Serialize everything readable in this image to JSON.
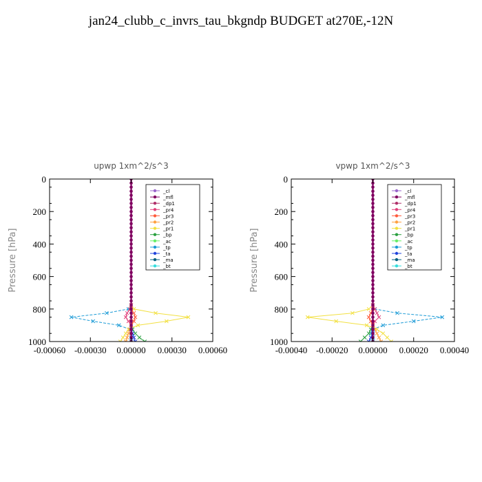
{
  "title": "jan24_clubb_c_invrs_tau_bkgndp  BUDGET at270E,-12N",
  "legend_entries": [
    {
      "name": "_cl",
      "color": "#9966cc"
    },
    {
      "name": "_mfl",
      "color": "#800060"
    },
    {
      "name": "_dp1",
      "color": "#b0306a"
    },
    {
      "name": "_pr4",
      "color": "#e0407a"
    },
    {
      "name": "_pr3",
      "color": "#ff5a3a"
    },
    {
      "name": "_pr2",
      "color": "#ffa040"
    },
    {
      "name": "_pr1",
      "color": "#f2e040"
    },
    {
      "name": "_bp",
      "color": "#2aa040"
    },
    {
      "name": "_ac",
      "color": "#66ee66"
    },
    {
      "name": "_tp",
      "color": "#1a9ad6"
    },
    {
      "name": "_ta",
      "color": "#2244dd"
    },
    {
      "name": "_ma",
      "color": "#006080"
    },
    {
      "name": "_bt",
      "color": "#33dddd"
    }
  ],
  "chart_data": [
    {
      "type": "line",
      "title": "upwp   1xm^2/s^3",
      "ylabel": "Pressure [hPa]",
      "xlim": [
        -0.0006,
        0.0006
      ],
      "ylim": [
        1000,
        0
      ],
      "xticks": [
        "-0.00060",
        "-0.00030",
        "0.00000",
        "0.00030",
        "0.00060"
      ],
      "yticks": [
        "0",
        "200",
        "400",
        "600",
        "800",
        "1000"
      ],
      "grid": false,
      "legend_position": "top-right",
      "series": [
        {
          "name": "_tp",
          "y": [
            775,
            800,
            825,
            850,
            875,
            900,
            925,
            950,
            975,
            1000
          ],
          "x": [
            0,
            -2e-05,
            -0.00018,
            -0.00044,
            -0.00028,
            -9e-05,
            -1e-05,
            1e-05,
            0,
            0
          ]
        },
        {
          "name": "_pr1",
          "y": [
            775,
            800,
            825,
            850,
            875,
            900,
            925,
            950,
            975,
            1000
          ],
          "x": [
            0,
            2e-05,
            0.00018,
            0.00042,
            0.00026,
            5e-05,
            -2e-05,
            -4e-05,
            -6e-05,
            -8e-05
          ]
        },
        {
          "name": "_pr2",
          "y": [
            875,
            900,
            925,
            950,
            975,
            1000
          ],
          "x": [
            0,
            0,
            -1e-05,
            -2e-05,
            -3e-05,
            -4e-05
          ]
        },
        {
          "name": "_bp",
          "y": [
            900,
            925,
            950,
            975,
            1000
          ],
          "x": [
            0,
            1e-05,
            3e-05,
            6e-05,
            0.0001
          ]
        },
        {
          "name": "_ta",
          "y": [
            925,
            950,
            975,
            1000
          ],
          "x": [
            0,
            1e-05,
            2e-05,
            3e-05
          ]
        },
        {
          "name": "_pr4",
          "y": [
            775,
            800,
            825,
            850,
            875,
            900
          ],
          "x": [
            0,
            -1e-05,
            -3e-05,
            -4e-05,
            -2e-05,
            0
          ]
        },
        {
          "name": "_pr3",
          "y": [
            800,
            825,
            850,
            875,
            900
          ],
          "x": [
            0,
            2e-05,
            3e-05,
            2e-05,
            0
          ]
        },
        {
          "name": "_mfl",
          "y": [
            0,
            25,
            50,
            75,
            100,
            125,
            150,
            175,
            200,
            225,
            250,
            275,
            300,
            325,
            350,
            375,
            400,
            425,
            450,
            475,
            500,
            525,
            550,
            575,
            600,
            625,
            650,
            675,
            700,
            725,
            750,
            775,
            800,
            825,
            850,
            875,
            900,
            925,
            950,
            975,
            1000
          ],
          "x": [
            0,
            0,
            0,
            0,
            0,
            0,
            0,
            0,
            0,
            0,
            0,
            0,
            0,
            0,
            0,
            0,
            0,
            0,
            0,
            0,
            0,
            0,
            0,
            0,
            0,
            0,
            0,
            0,
            0,
            0,
            0,
            0,
            0,
            0,
            0,
            0,
            0,
            0,
            0,
            0,
            0
          ]
        }
      ]
    },
    {
      "type": "line",
      "title": "vpwp   1xm^2/s^3",
      "ylabel": "Pressure [hPa]",
      "xlim": [
        -0.0004,
        0.0004
      ],
      "ylim": [
        1000,
        0
      ],
      "xticks": [
        "-0.00040",
        "-0.00020",
        "0.00000",
        "0.00020",
        "0.00040"
      ],
      "yticks": [
        "0",
        "200",
        "400",
        "600",
        "800",
        "1000"
      ],
      "grid": false,
      "legend_position": "top-right",
      "series": [
        {
          "name": "_tp",
          "y": [
            775,
            800,
            825,
            850,
            875,
            900,
            925,
            950,
            975,
            1000
          ],
          "x": [
            0,
            1e-05,
            0.00012,
            0.00034,
            0.0002,
            5e-05,
            0,
            -1e-05,
            0,
            0
          ]
        },
        {
          "name": "_pr1",
          "y": [
            775,
            800,
            825,
            850,
            875,
            900,
            925,
            950,
            975,
            1000
          ],
          "x": [
            0,
            -2e-05,
            -0.0001,
            -0.00032,
            -0.00018,
            -3e-05,
            2e-05,
            5e-05,
            7e-05,
            9e-05
          ]
        },
        {
          "name": "_pr2",
          "y": [
            900,
            925,
            950,
            975,
            1000
          ],
          "x": [
            0,
            1e-05,
            2e-05,
            3e-05,
            4e-05
          ]
        },
        {
          "name": "_bp",
          "y": [
            900,
            925,
            950,
            975,
            1000
          ],
          "x": [
            0,
            -1e-05,
            -2e-05,
            -4e-05,
            -6e-05
          ]
        },
        {
          "name": "_ta",
          "y": [
            925,
            950,
            975,
            1000
          ],
          "x": [
            0,
            0,
            -1e-05,
            -2e-05
          ]
        },
        {
          "name": "_pr4",
          "y": [
            775,
            800,
            825,
            850,
            875,
            900
          ],
          "x": [
            0,
            1e-05,
            2e-05,
            3e-05,
            1e-05,
            0
          ]
        },
        {
          "name": "_pr3",
          "y": [
            800,
            825,
            850,
            875,
            900
          ],
          "x": [
            0,
            -1e-05,
            -2e-05,
            -1e-05,
            0
          ]
        },
        {
          "name": "_mfl",
          "y": [
            0,
            25,
            50,
            75,
            100,
            125,
            150,
            175,
            200,
            225,
            250,
            275,
            300,
            325,
            350,
            375,
            400,
            425,
            450,
            475,
            500,
            525,
            550,
            575,
            600,
            625,
            650,
            675,
            700,
            725,
            750,
            775,
            800,
            825,
            850,
            875,
            900,
            925,
            950,
            975,
            1000
          ],
          "x": [
            0,
            0,
            0,
            0,
            0,
            0,
            0,
            0,
            0,
            0,
            0,
            0,
            0,
            0,
            0,
            0,
            0,
            0,
            0,
            0,
            0,
            0,
            0,
            0,
            0,
            0,
            0,
            0,
            0,
            0,
            0,
            0,
            0,
            0,
            0,
            0,
            0,
            0,
            0,
            0,
            0
          ]
        }
      ]
    }
  ]
}
